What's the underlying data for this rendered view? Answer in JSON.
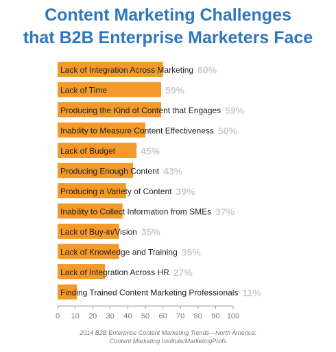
{
  "chart_data": {
    "type": "bar",
    "orientation": "horizontal",
    "title": [
      "Content Marketing Challenges",
      "that B2B Enterprise Marketers Face"
    ],
    "categories": [
      "Lack of Integration Across Marketing",
      "Lack of Time",
      "Producing the Kind of Content that Engages",
      "Inability to Measure Content Effectiveness",
      "Lack of Budget",
      "Producing Enough Content",
      "Producing a Variety of Content",
      "Inability to Collect Information from SMEs",
      "Lack of Buy-in/Vision",
      "Lack of Knowledge and Training",
      "Lack of Integration Across HR",
      "Finding Trained Content Marketing Professionals"
    ],
    "values": [
      60,
      59,
      59,
      50,
      45,
      43,
      39,
      37,
      35,
      35,
      27,
      11
    ],
    "value_labels": [
      "60%",
      "59%",
      "59%",
      "50%",
      "45%",
      "43%",
      "39%",
      "37%",
      "35%",
      "35%",
      "27%",
      "11%"
    ],
    "xlim": [
      0,
      100
    ],
    "xticks": [
      0,
      10,
      20,
      30,
      40,
      50,
      60,
      70,
      80,
      90,
      100
    ],
    "xtick_labels": [
      "0",
      "10",
      "20",
      "30",
      "40",
      "50",
      "60",
      "70",
      "80",
      "90",
      "100"
    ],
    "grid": false,
    "legend": "none",
    "source": [
      "2014 B2B Enterprise Content Marketing Trends—North America:",
      "Content Marketing Institute/MarketingProfs"
    ],
    "colors": {
      "bar": "#f39a2b",
      "title": "#2f77bd",
      "value_label": "#cccccc",
      "axis": "#999999",
      "category_label": "#222222",
      "source": "#7a7a7a"
    }
  }
}
